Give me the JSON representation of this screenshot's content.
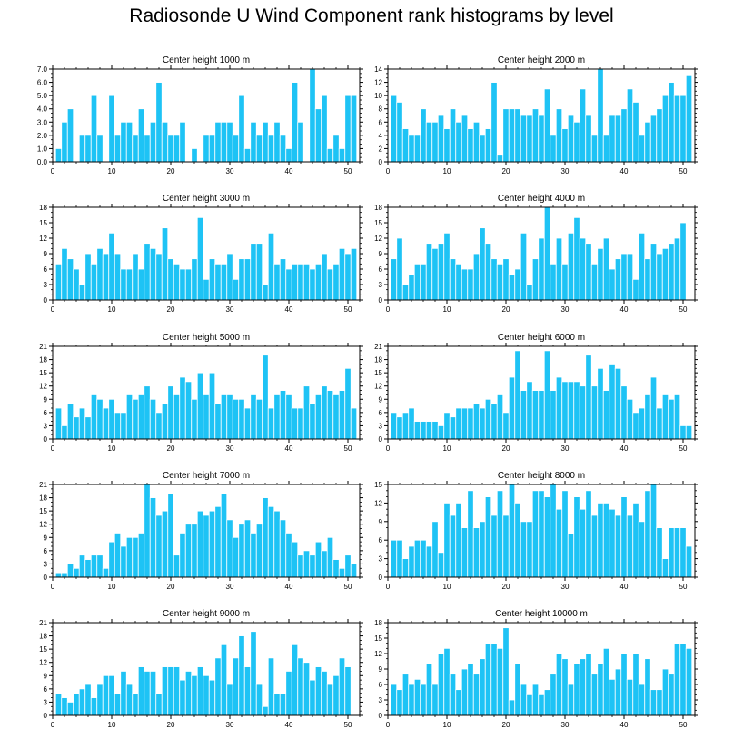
{
  "title": "Radiosonde U Wind Component rank histograms by level",
  "colors": {
    "bar": "#1ec3f5",
    "bar_edge": "#ffffff",
    "axis": "#000000"
  },
  "chart_data": [
    {
      "type": "bar",
      "title": "Center height 1000 m",
      "xlim": [
        0,
        52
      ],
      "ylim": [
        0,
        7
      ],
      "yticks": [
        "0.0",
        "1.0",
        "2.0",
        "3.0",
        "4.0",
        "5.0",
        "6.0",
        "7.0"
      ],
      "ytick_values": [
        0,
        1,
        2,
        3,
        4,
        5,
        6,
        7
      ],
      "xticks": [
        0,
        10,
        20,
        30,
        40,
        50
      ],
      "values": [
        1,
        3,
        4,
        0,
        2,
        2,
        5,
        2,
        0,
        5,
        2,
        3,
        3,
        2,
        4,
        2,
        3,
        6,
        3,
        2,
        2,
        3,
        0,
        1,
        0,
        2,
        2,
        3,
        3,
        3,
        2,
        5,
        1,
        3,
        2,
        3,
        2,
        3,
        2,
        1,
        6,
        3,
        0,
        7,
        4,
        5,
        1,
        2,
        1,
        5,
        5
      ]
    },
    {
      "type": "bar",
      "title": "Center height 2000 m",
      "xlim": [
        0,
        52
      ],
      "ylim": [
        0,
        14
      ],
      "yticks": [
        "0",
        "2",
        "4",
        "6",
        "8",
        "10",
        "12",
        "14"
      ],
      "ytick_values": [
        0,
        2,
        4,
        6,
        8,
        10,
        12,
        14
      ],
      "xticks": [
        0,
        10,
        20,
        30,
        40,
        50
      ],
      "values": [
        10,
        9,
        5,
        4,
        4,
        8,
        6,
        6,
        7,
        5,
        8,
        6,
        7,
        5,
        6,
        4,
        5,
        12,
        1,
        8,
        8,
        8,
        7,
        7,
        8,
        7,
        11,
        4,
        8,
        5,
        7,
        6,
        11,
        7,
        4,
        14,
        4,
        7,
        7,
        8,
        11,
        9,
        4,
        6,
        7,
        8,
        10,
        12,
        10,
        10,
        13
      ]
    },
    {
      "type": "bar",
      "title": "Center height 3000 m",
      "xlim": [
        0,
        52
      ],
      "ylim": [
        0,
        18
      ],
      "yticks": [
        "0",
        "3",
        "6",
        "9",
        "12",
        "15",
        "18"
      ],
      "ytick_values": [
        0,
        3,
        6,
        9,
        12,
        15,
        18
      ],
      "xticks": [
        0,
        10,
        20,
        30,
        40,
        50
      ],
      "values": [
        7,
        10,
        8,
        6,
        3,
        9,
        7,
        10,
        9,
        13,
        9,
        6,
        6,
        9,
        6,
        11,
        10,
        9,
        14,
        8,
        7,
        6,
        6,
        8,
        16,
        4,
        8,
        7,
        7,
        9,
        4,
        8,
        8,
        11,
        11,
        3,
        13,
        7,
        8,
        6,
        7,
        7,
        7,
        6,
        7,
        9,
        6,
        7,
        10,
        9,
        10
      ]
    },
    {
      "type": "bar",
      "title": "Center height 4000 m",
      "xlim": [
        0,
        52
      ],
      "ylim": [
        0,
        18
      ],
      "yticks": [
        "0",
        "3",
        "6",
        "9",
        "12",
        "15",
        "18"
      ],
      "ytick_values": [
        0,
        3,
        6,
        9,
        12,
        15,
        18
      ],
      "xticks": [
        0,
        10,
        20,
        30,
        40,
        50
      ],
      "values": [
        8,
        12,
        3,
        5,
        7,
        7,
        11,
        10,
        11,
        13,
        8,
        7,
        6,
        6,
        9,
        14,
        11,
        8,
        7,
        8,
        5,
        6,
        13,
        3,
        8,
        12,
        18,
        7,
        12,
        7,
        13,
        16,
        12,
        11,
        7,
        10,
        12,
        6,
        8,
        9,
        9,
        4,
        13,
        8,
        11,
        9,
        10,
        11,
        12,
        15,
        0
      ]
    },
    {
      "type": "bar",
      "title": "Center height 5000 m",
      "xlim": [
        0,
        52
      ],
      "ylim": [
        0,
        21
      ],
      "yticks": [
        "0",
        "3",
        "6",
        "9",
        "12",
        "15",
        "18",
        "21"
      ],
      "ytick_values": [
        0,
        3,
        6,
        9,
        12,
        15,
        18,
        21
      ],
      "xticks": [
        0,
        10,
        20,
        30,
        40,
        50
      ],
      "values": [
        7,
        3,
        8,
        5,
        7,
        5,
        10,
        9,
        7,
        9,
        6,
        6,
        10,
        9,
        10,
        12,
        9,
        6,
        8,
        12,
        10,
        14,
        13,
        9,
        15,
        10,
        15,
        8,
        10,
        10,
        9,
        9,
        7,
        10,
        9,
        19,
        7,
        10,
        11,
        10,
        7,
        7,
        12,
        8,
        10,
        12,
        11,
        10,
        11,
        16,
        7
      ]
    },
    {
      "type": "bar",
      "title": "Center height 6000 m",
      "xlim": [
        0,
        52
      ],
      "ylim": [
        0,
        21
      ],
      "yticks": [
        "0",
        "3",
        "6",
        "9",
        "12",
        "15",
        "18",
        "21"
      ],
      "ytick_values": [
        0,
        3,
        6,
        9,
        12,
        15,
        18,
        21
      ],
      "xticks": [
        0,
        10,
        20,
        30,
        40,
        50
      ],
      "values": [
        6,
        5,
        6,
        7,
        4,
        4,
        4,
        4,
        3,
        6,
        5,
        7,
        7,
        7,
        8,
        7,
        9,
        8,
        10,
        6,
        14,
        20,
        11,
        13,
        11,
        11,
        20,
        11,
        14,
        13,
        13,
        13,
        12,
        19,
        12,
        16,
        11,
        17,
        16,
        12,
        9,
        6,
        7,
        10,
        14,
        7,
        10,
        9,
        10,
        3,
        3
      ]
    },
    {
      "type": "bar",
      "title": "Center height 7000 m",
      "xlim": [
        0,
        52
      ],
      "ylim": [
        0,
        21
      ],
      "yticks": [
        "0",
        "3",
        "6",
        "9",
        "12",
        "15",
        "18",
        "21"
      ],
      "ytick_values": [
        0,
        3,
        6,
        9,
        12,
        15,
        18,
        21
      ],
      "xticks": [
        0,
        10,
        20,
        30,
        40,
        50
      ],
      "values": [
        1,
        1,
        3,
        2,
        5,
        4,
        5,
        5,
        2,
        8,
        10,
        7,
        9,
        9,
        10,
        21,
        18,
        14,
        15,
        19,
        5,
        10,
        12,
        12,
        15,
        14,
        15,
        16,
        19,
        13,
        9,
        12,
        13,
        10,
        12,
        18,
        16,
        15,
        13,
        10,
        8,
        5,
        6,
        5,
        8,
        6,
        9,
        4,
        2,
        5,
        3
      ]
    },
    {
      "type": "bar",
      "title": "Center height 8000 m",
      "xlim": [
        0,
        52
      ],
      "ylim": [
        0,
        15
      ],
      "yticks": [
        "0",
        "3",
        "6",
        "9",
        "12",
        "15"
      ],
      "ytick_values": [
        0,
        3,
        6,
        9,
        12,
        15
      ],
      "xticks": [
        0,
        10,
        20,
        30,
        40,
        50
      ],
      "values": [
        6,
        6,
        3,
        5,
        6,
        6,
        5,
        9,
        4,
        12,
        10,
        12,
        8,
        14,
        8,
        9,
        13,
        10,
        14,
        10,
        15,
        12,
        9,
        9,
        14,
        14,
        13,
        15,
        11,
        14,
        7,
        13,
        11,
        14,
        10,
        12,
        12,
        11,
        10,
        13,
        10,
        12,
        9,
        14,
        15,
        8,
        3,
        8,
        8,
        8,
        5
      ]
    },
    {
      "type": "bar",
      "title": "Center height 9000 m",
      "xlim": [
        0,
        52
      ],
      "ylim": [
        0,
        21
      ],
      "yticks": [
        "0",
        "3",
        "6",
        "9",
        "12",
        "15",
        "18",
        "21"
      ],
      "ytick_values": [
        0,
        3,
        6,
        9,
        12,
        15,
        18,
        21
      ],
      "xticks": [
        0,
        10,
        20,
        30,
        40,
        50
      ],
      "values": [
        5,
        4,
        3,
        5,
        6,
        7,
        4,
        7,
        9,
        9,
        5,
        10,
        7,
        5,
        11,
        10,
        10,
        5,
        11,
        11,
        11,
        8,
        10,
        9,
        11,
        9,
        8,
        13,
        16,
        7,
        13,
        18,
        11,
        19,
        7,
        2,
        13,
        5,
        5,
        10,
        16,
        13,
        12,
        8,
        11,
        10,
        7,
        9,
        13,
        11,
        0
      ]
    },
    {
      "type": "bar",
      "title": "Center height 10000 m",
      "xlim": [
        0,
        52
      ],
      "ylim": [
        0,
        18
      ],
      "yticks": [
        "0",
        "3",
        "6",
        "9",
        "12",
        "15",
        "18"
      ],
      "ytick_values": [
        0,
        3,
        6,
        9,
        12,
        15,
        18
      ],
      "xticks": [
        0,
        10,
        20,
        30,
        40,
        50
      ],
      "values": [
        6,
        5,
        8,
        6,
        7,
        6,
        10,
        6,
        12,
        13,
        8,
        5,
        9,
        10,
        8,
        11,
        14,
        14,
        13,
        17,
        3,
        10,
        6,
        4,
        6,
        4,
        5,
        8,
        12,
        11,
        6,
        10,
        11,
        12,
        8,
        10,
        13,
        7,
        9,
        12,
        7,
        12,
        6,
        11,
        5,
        5,
        9,
        8,
        14,
        14,
        13
      ]
    }
  ]
}
